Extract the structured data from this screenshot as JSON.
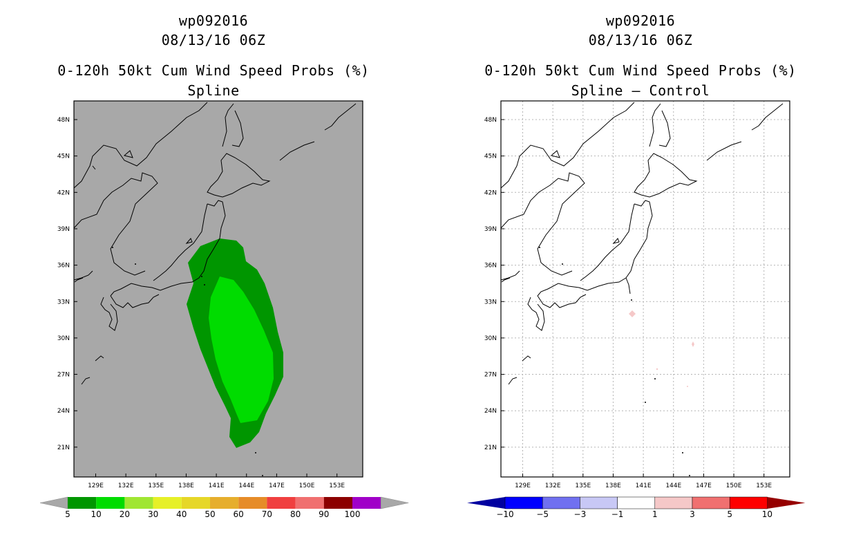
{
  "left_panel": {
    "storm_id": "wp092016",
    "datetime": "08/13/16 06Z",
    "product": "0-120h 50kt Cum Wind Speed Probs (%)",
    "method": "Spline",
    "background_color": "#a8a8a8",
    "colorbar": {
      "labels": [
        "5",
        "10",
        "20",
        "30",
        "40",
        "50",
        "60",
        "70",
        "80",
        "90",
        "100"
      ],
      "colors": [
        "#009600",
        "#00dc00",
        "#a0e632",
        "#e6f028",
        "#e6d728",
        "#e6ae2d",
        "#e68c28",
        "#f04040",
        "#f07070",
        "#8c0000",
        "#a000c8"
      ],
      "arrow_colors": [
        "#a8a8a8",
        "#a8a8a8"
      ]
    }
  },
  "right_panel": {
    "storm_id": "wp092016",
    "datetime": "08/13/16 06Z",
    "product": "0-120h 50kt Cum Wind Speed Probs (%)",
    "method": "Spline – Control",
    "background_color": "#ffffff",
    "colorbar": {
      "labels": [
        "−10",
        "−5",
        "−3",
        "−1",
        "1",
        "3",
        "5",
        "10"
      ],
      "colors": [
        "#0000a0",
        "#0000ff",
        "#7070f0",
        "#c8c8f5",
        "#ffffff",
        "#f5c8c8",
        "#f07070",
        "#ff0000",
        "#960000"
      ]
    }
  },
  "map_axes": {
    "lon_labels": [
      "129E",
      "132E",
      "135E",
      "138E",
      "141E",
      "144E",
      "147E",
      "150E",
      "153E"
    ],
    "lat_labels": [
      "48N",
      "45N",
      "42N",
      "39N",
      "36N",
      "33N",
      "30N",
      "27N",
      "24N",
      "21N"
    ],
    "lon_values": [
      129,
      132,
      135,
      138,
      141,
      144,
      147,
      150,
      153
    ],
    "lat_values": [
      48,
      45,
      42,
      39,
      36,
      33,
      30,
      27,
      24,
      21
    ]
  }
}
